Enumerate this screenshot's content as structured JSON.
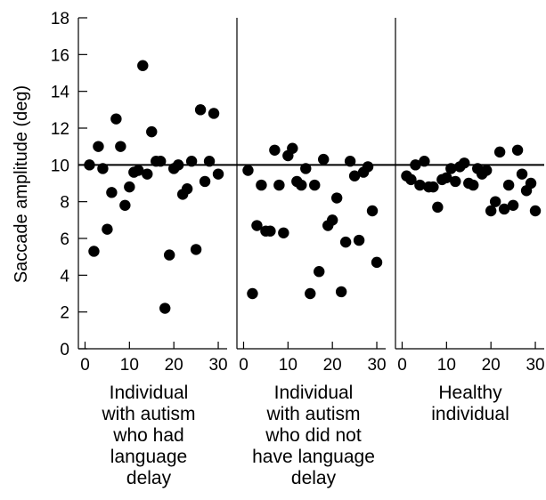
{
  "chart_data": {
    "type": "scatter",
    "ylabel": "Saccade amplitude (deg)",
    "ylim": [
      0,
      18
    ],
    "xlim": [
      -1.5,
      32
    ],
    "yticks": [
      0,
      2,
      4,
      6,
      8,
      10,
      12,
      14,
      16,
      18
    ],
    "xticks": [
      0,
      10,
      20,
      30
    ],
    "reference_line_y": 10,
    "marker_color": "#000000",
    "panels": [
      {
        "caption": [
          "Individual",
          "with autism",
          "who had",
          "language",
          "delay"
        ],
        "points": [
          [
            1,
            10.0
          ],
          [
            2,
            5.3
          ],
          [
            3,
            11.0
          ],
          [
            4,
            9.8
          ],
          [
            5,
            6.5
          ],
          [
            6,
            8.5
          ],
          [
            7,
            12.5
          ],
          [
            8,
            11.0
          ],
          [
            9,
            7.8
          ],
          [
            10,
            8.8
          ],
          [
            11,
            9.6
          ],
          [
            12,
            9.7
          ],
          [
            13,
            15.4
          ],
          [
            14,
            9.5
          ],
          [
            15,
            11.8
          ],
          [
            16,
            10.2
          ],
          [
            17,
            10.2
          ],
          [
            18,
            2.2
          ],
          [
            19,
            5.1
          ],
          [
            20,
            9.8
          ],
          [
            21,
            10.0
          ],
          [
            22,
            8.4
          ],
          [
            23,
            8.7
          ],
          [
            24,
            10.2
          ],
          [
            25,
            5.4
          ],
          [
            26,
            13.0
          ],
          [
            27,
            9.1
          ],
          [
            28,
            10.2
          ],
          [
            29,
            12.8
          ],
          [
            30,
            9.5
          ]
        ]
      },
      {
        "caption": [
          "Individual",
          "with autism",
          "who did not",
          "have language",
          "delay"
        ],
        "points": [
          [
            1,
            9.7
          ],
          [
            2,
            3.0
          ],
          [
            3,
            6.7
          ],
          [
            4,
            8.9
          ],
          [
            5,
            6.4
          ],
          [
            6,
            6.4
          ],
          [
            7,
            10.8
          ],
          [
            8,
            8.9
          ],
          [
            9,
            6.3
          ],
          [
            10,
            10.5
          ],
          [
            11,
            10.9
          ],
          [
            12,
            9.1
          ],
          [
            13,
            8.9
          ],
          [
            14,
            9.8
          ],
          [
            15,
            3.0
          ],
          [
            16,
            8.9
          ],
          [
            17,
            4.2
          ],
          [
            18,
            10.3
          ],
          [
            19,
            6.7
          ],
          [
            20,
            7.0
          ],
          [
            21,
            8.2
          ],
          [
            22,
            3.1
          ],
          [
            23,
            5.8
          ],
          [
            24,
            10.2
          ],
          [
            25,
            9.4
          ],
          [
            26,
            5.9
          ],
          [
            27,
            9.6
          ],
          [
            28,
            9.9
          ],
          [
            29,
            7.5
          ],
          [
            30,
            4.7
          ]
        ]
      },
      {
        "caption": [
          "Healthy",
          "individual"
        ],
        "points": [
          [
            1,
            9.4
          ],
          [
            2,
            9.2
          ],
          [
            3,
            10.0
          ],
          [
            4,
            8.9
          ],
          [
            5,
            10.2
          ],
          [
            6,
            8.8
          ],
          [
            7,
            8.8
          ],
          [
            8,
            7.7
          ],
          [
            9,
            9.2
          ],
          [
            10,
            9.3
          ],
          [
            11,
            9.8
          ],
          [
            12,
            9.1
          ],
          [
            13,
            9.9
          ],
          [
            14,
            10.1
          ],
          [
            15,
            9.0
          ],
          [
            16,
            8.9
          ],
          [
            17,
            9.8
          ],
          [
            18,
            9.5
          ],
          [
            19,
            9.7
          ],
          [
            20,
            7.5
          ],
          [
            21,
            8.0
          ],
          [
            22,
            10.7
          ],
          [
            23,
            7.6
          ],
          [
            24,
            8.9
          ],
          [
            25,
            7.8
          ],
          [
            26,
            10.8
          ],
          [
            27,
            9.5
          ],
          [
            28,
            8.6
          ],
          [
            29,
            9.0
          ],
          [
            30,
            7.5
          ]
        ]
      }
    ]
  }
}
